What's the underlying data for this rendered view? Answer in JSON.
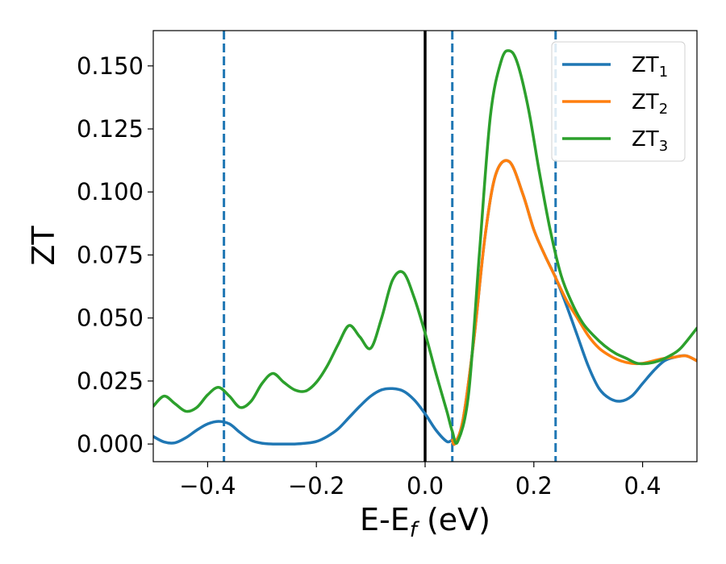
{
  "chart_data": {
    "type": "line",
    "title": "",
    "xlabel": "E-E",
    "xlabel_sub": "f",
    "xlabel_unit": " (eV)",
    "ylabel": "ZT",
    "xlim": [
      -0.5,
      0.5
    ],
    "ylim": [
      -0.007,
      0.164
    ],
    "grid": false,
    "legend_position": "top-right",
    "xticks": [
      -0.4,
      -0.2,
      0.0,
      0.2,
      0.4
    ],
    "xtick_labels": [
      "−0.4",
      "−0.2",
      "0.0",
      "0.2",
      "0.4"
    ],
    "yticks": [
      0.0,
      0.025,
      0.05,
      0.075,
      0.1,
      0.125,
      0.15
    ],
    "ytick_labels": [
      "0.000",
      "0.025",
      "0.050",
      "0.075",
      "0.100",
      "0.125",
      "0.150"
    ],
    "vertical_lines": [
      {
        "x": 0.0,
        "style": "solid",
        "color": "#000000"
      },
      {
        "x": -0.37,
        "style": "dashed",
        "color": "#1f77b4"
      },
      {
        "x": 0.05,
        "style": "dashed",
        "color": "#1f77b4"
      },
      {
        "x": 0.24,
        "style": "dashed",
        "color": "#1f77b4"
      }
    ],
    "series": [
      {
        "name": "ZT",
        "subscript": "1",
        "color": "#1f77b4",
        "x": [
          -0.5,
          -0.48,
          -0.46,
          -0.44,
          -0.42,
          -0.4,
          -0.38,
          -0.36,
          -0.34,
          -0.32,
          -0.3,
          -0.28,
          -0.26,
          -0.24,
          -0.22,
          -0.2,
          -0.18,
          -0.16,
          -0.14,
          -0.12,
          -0.1,
          -0.08,
          -0.06,
          -0.04,
          -0.02,
          0.0,
          0.02,
          0.04,
          0.05,
          0.055,
          0.07,
          0.09,
          0.11,
          0.13,
          0.155,
          0.18,
          0.2,
          0.22,
          0.24,
          0.26,
          0.28,
          0.3,
          0.32,
          0.34,
          0.36,
          0.38,
          0.4,
          0.42,
          0.44,
          0.46,
          0.48,
          0.5
        ],
        "y": [
          0.003,
          0.0008,
          0.0005,
          0.0025,
          0.0055,
          0.008,
          0.009,
          0.008,
          0.0045,
          0.0015,
          0.0003,
          0.0,
          0.0,
          0.0,
          0.0003,
          0.001,
          0.003,
          0.006,
          0.0105,
          0.015,
          0.019,
          0.0215,
          0.022,
          0.021,
          0.0175,
          0.012,
          0.0055,
          0.001,
          0.0015,
          0.0003,
          0.01,
          0.042,
          0.082,
          0.107,
          0.112,
          0.099,
          0.085,
          0.075,
          0.066,
          0.055,
          0.043,
          0.031,
          0.022,
          0.018,
          0.017,
          0.019,
          0.024,
          0.029,
          0.033,
          0.0345,
          0.035,
          0.033
        ]
      },
      {
        "name": "ZT",
        "subscript": "2",
        "color": "#ff7f0e",
        "x": [
          0.05,
          0.055,
          0.07,
          0.09,
          0.11,
          0.13,
          0.155,
          0.18,
          0.2,
          0.22,
          0.24,
          0.26,
          0.28,
          0.3,
          0.32,
          0.34,
          0.36,
          0.38,
          0.4,
          0.42,
          0.44,
          0.46,
          0.48,
          0.5
        ],
        "y": [
          0.0015,
          0.0003,
          0.01,
          0.042,
          0.082,
          0.107,
          0.112,
          0.099,
          0.085,
          0.075,
          0.066,
          0.057,
          0.05,
          0.043,
          0.038,
          0.035,
          0.033,
          0.032,
          0.032,
          0.033,
          0.034,
          0.0345,
          0.035,
          0.033
        ]
      },
      {
        "name": "ZT",
        "subscript": "3",
        "color": "#2ca02c",
        "x": [
          -0.5,
          -0.48,
          -0.46,
          -0.44,
          -0.42,
          -0.4,
          -0.38,
          -0.36,
          -0.34,
          -0.32,
          -0.3,
          -0.28,
          -0.26,
          -0.24,
          -0.22,
          -0.2,
          -0.18,
          -0.16,
          -0.14,
          -0.12,
          -0.1,
          -0.08,
          -0.06,
          -0.04,
          -0.02,
          0.0,
          0.02,
          0.04,
          0.05,
          0.06,
          0.08,
          0.1,
          0.12,
          0.14,
          0.155,
          0.17,
          0.19,
          0.21,
          0.23,
          0.25,
          0.27,
          0.29,
          0.31,
          0.33,
          0.35,
          0.37,
          0.39,
          0.41,
          0.43,
          0.45,
          0.47,
          0.5
        ],
        "y": [
          0.015,
          0.019,
          0.016,
          0.013,
          0.0145,
          0.0195,
          0.0225,
          0.019,
          0.0145,
          0.017,
          0.024,
          0.028,
          0.0245,
          0.0215,
          0.021,
          0.0245,
          0.031,
          0.0395,
          0.047,
          0.0425,
          0.038,
          0.05,
          0.065,
          0.068,
          0.058,
          0.044,
          0.028,
          0.013,
          0.005,
          0.001,
          0.02,
          0.076,
          0.13,
          0.152,
          0.156,
          0.151,
          0.133,
          0.108,
          0.085,
          0.067,
          0.056,
          0.048,
          0.043,
          0.039,
          0.036,
          0.034,
          0.032,
          0.032,
          0.033,
          0.035,
          0.038,
          0.046
        ]
      }
    ]
  }
}
